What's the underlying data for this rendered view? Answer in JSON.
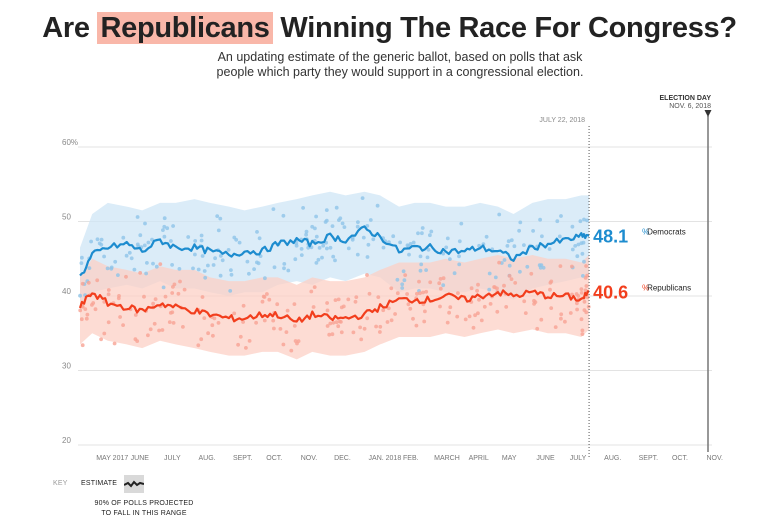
{
  "title": {
    "prefix": "Are",
    "highlight": "Republicans",
    "suffix": "Winning The Race For Congress?"
  },
  "subtitle": "An updating estimate of the generic ballot, based on polls that ask people which party they would support in a congressional election.",
  "markers": {
    "today": "JULY 22, 2018",
    "election_day_label": "ELECTION DAY",
    "election_day_date": "NOV. 6, 2018"
  },
  "colors": {
    "democrats": "#1d8ccf",
    "democrats_band": "#cfe6f6",
    "democrats_dots": "#8ec4e8",
    "republicans": "#f23e1d",
    "republicans_band": "#fcd0c5",
    "republicans_dots": "#f7a394",
    "highlight": "#f9b7a9"
  },
  "key": {
    "label": "KEY",
    "estimate": "ESTIMATE",
    "range_note": "90% OF POLLS PROJECTED TO FALL IN THIS RANGE"
  },
  "chart_data": {
    "type": "line",
    "title": "Are Republicans Winning The Race For Congress?",
    "ylim": [
      20,
      60
    ],
    "yticks": [
      {
        "value": 60,
        "label": "60%"
      },
      {
        "value": 50,
        "label": "50"
      },
      {
        "value": 40,
        "label": "40"
      },
      {
        "value": 30,
        "label": "30"
      },
      {
        "value": 20,
        "label": "20"
      }
    ],
    "grid": true,
    "x_ticks": [
      "MAY 2017",
      "JUNE",
      "JULY",
      "AUG.",
      "SEPT.",
      "OCT.",
      "NOV.",
      "DEC.",
      "JAN. 2018",
      "FEB.",
      "MARCH",
      "APRIL",
      "MAY",
      "JUNE",
      "JULY",
      "AUG.",
      "SEPT.",
      "OCT.",
      "NOV."
    ],
    "x": [
      "2017-04-20",
      "2017-05-01",
      "2017-05-15",
      "2017-06-01",
      "2017-06-15",
      "2017-07-01",
      "2017-07-15",
      "2017-08-01",
      "2017-08-15",
      "2017-09-01",
      "2017-09-15",
      "2017-10-01",
      "2017-10-15",
      "2017-11-01",
      "2017-11-15",
      "2017-12-01",
      "2017-12-15",
      "2018-01-01",
      "2018-01-15",
      "2018-02-01",
      "2018-02-15",
      "2018-03-01",
      "2018-03-15",
      "2018-04-01",
      "2018-04-15",
      "2018-05-01",
      "2018-05-15",
      "2018-06-01",
      "2018-06-15",
      "2018-07-01",
      "2018-07-15",
      "2018-07-22"
    ],
    "series": [
      {
        "name": "Democrats",
        "values": [
          42.5,
          45.5,
          46.5,
          47.0,
          46.0,
          47.5,
          46.5,
          46.5,
          46.0,
          45.5,
          46.0,
          46.0,
          47.0,
          47.5,
          47.0,
          48.0,
          47.5,
          49.0,
          48.0,
          46.0,
          46.5,
          46.5,
          46.0,
          46.0,
          46.5,
          46.0,
          45.0,
          46.5,
          47.0,
          47.5,
          48.0,
          48.1
        ],
        "upper": [
          46.5,
          51.0,
          52.5,
          52.0,
          51.5,
          52.5,
          52.5,
          53.0,
          52.5,
          52.0,
          51.5,
          52.0,
          52.5,
          53.0,
          53.5,
          54.0,
          53.5,
          54.0,
          53.5,
          52.0,
          52.5,
          52.5,
          52.0,
          52.0,
          52.5,
          52.0,
          51.0,
          52.5,
          53.0,
          53.0,
          53.5,
          53.5
        ],
        "lower": [
          38.5,
          40.5,
          41.0,
          41.5,
          41.0,
          42.0,
          41.0,
          41.0,
          40.5,
          40.0,
          40.5,
          40.5,
          41.5,
          42.0,
          41.5,
          42.5,
          42.0,
          43.0,
          42.5,
          40.5,
          41.0,
          41.0,
          40.5,
          40.5,
          41.0,
          40.5,
          39.5,
          41.0,
          41.5,
          42.0,
          42.5,
          42.5
        ],
        "label_value": "48.1",
        "label_text": "% Democrats"
      },
      {
        "name": "Republicans",
        "values": [
          38.5,
          40.5,
          39.0,
          38.5,
          38.0,
          39.0,
          38.5,
          38.0,
          37.5,
          37.0,
          37.0,
          37.5,
          37.5,
          36.5,
          37.5,
          37.0,
          37.0,
          37.5,
          38.5,
          39.5,
          39.5,
          39.5,
          40.0,
          39.5,
          40.0,
          40.5,
          40.0,
          40.5,
          40.0,
          40.0,
          39.5,
          40.6
        ],
        "upper": [
          42.5,
          45.0,
          44.0,
          43.5,
          43.0,
          44.0,
          43.5,
          43.5,
          42.5,
          42.0,
          42.0,
          42.5,
          42.5,
          41.5,
          42.5,
          42.0,
          42.0,
          42.5,
          43.5,
          44.5,
          44.5,
          44.5,
          45.0,
          44.5,
          45.0,
          45.5,
          45.0,
          45.5,
          45.0,
          45.0,
          44.5,
          45.5
        ],
        "lower": [
          33.5,
          35.0,
          34.0,
          33.5,
          33.0,
          34.0,
          33.5,
          33.0,
          32.5,
          32.0,
          32.0,
          32.5,
          32.5,
          31.5,
          32.5,
          32.0,
          32.0,
          32.5,
          33.5,
          34.5,
          34.5,
          34.5,
          35.0,
          34.5,
          35.0,
          35.5,
          35.0,
          35.5,
          35.0,
          35.0,
          34.5,
          35.5
        ],
        "label_value": "40.6",
        "label_text": "% Republicans"
      }
    ]
  }
}
